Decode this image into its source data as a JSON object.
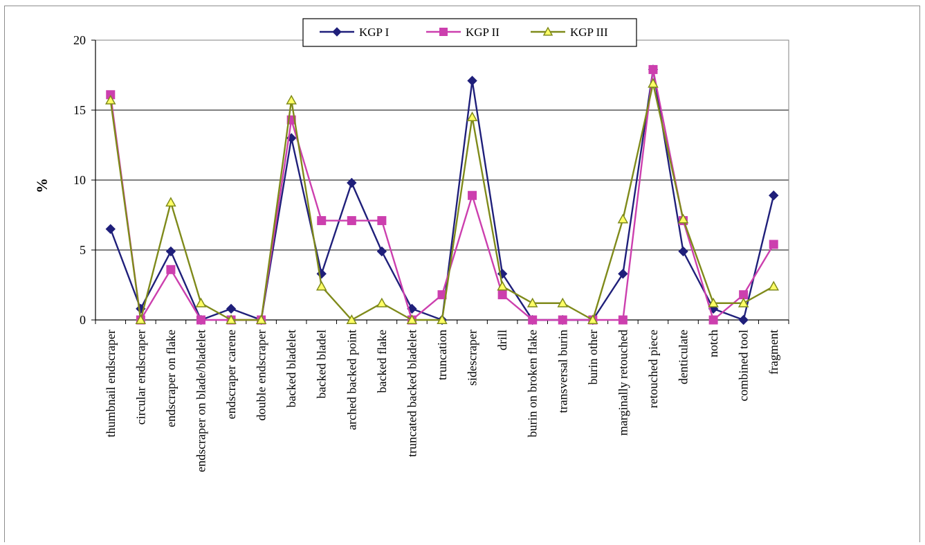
{
  "chart_data": {
    "type": "line",
    "title": "",
    "xlabel": "",
    "ylabel": "%",
    "ylim": [
      0,
      20
    ],
    "yticks": [
      0,
      5,
      10,
      15,
      20
    ],
    "grid": true,
    "legend_position": "top-center",
    "categories": [
      "thumbnail endscraper",
      "circular endscraper",
      "endscraper on flake",
      "endscraper on blade/bladelet",
      "endscraper carene",
      "double endscraper",
      "backed bladelet",
      "backed bladel",
      "arched backed point",
      "backed flake",
      "truncated backed bladelet",
      "truncation",
      "sidescraper",
      "drill",
      "burin on broken flake",
      "transversal burin",
      "burin other",
      "marginally retouched",
      "retouched piece",
      "denticulate",
      "notch",
      "combined tool",
      "fragment"
    ],
    "series": [
      {
        "name": "KGP I",
        "color": "#1f1f7a",
        "marker": "diamond",
        "values": [
          6.5,
          0.8,
          4.9,
          0,
          0.8,
          0,
          13.0,
          3.3,
          9.8,
          4.9,
          0.8,
          0,
          17.1,
          3.3,
          0,
          0,
          0,
          3.3,
          17.9,
          4.9,
          0.8,
          0,
          8.9
        ]
      },
      {
        "name": "KGP II",
        "color": "#cc3fae",
        "marker": "square",
        "values": [
          16.1,
          0,
          3.6,
          0,
          0,
          0,
          14.3,
          7.1,
          7.1,
          7.1,
          0,
          1.8,
          8.9,
          1.8,
          0,
          0,
          0,
          0,
          17.9,
          7.1,
          0,
          1.8,
          5.4
        ]
      },
      {
        "name": "KGP III",
        "color": "#7f8a1a",
        "marker_fill": "#ffff66",
        "marker": "triangle",
        "values": [
          15.7,
          0,
          8.4,
          1.2,
          0,
          0,
          15.7,
          2.4,
          0,
          1.2,
          0,
          0,
          14.5,
          2.4,
          1.2,
          1.2,
          0,
          7.2,
          16.9,
          7.2,
          1.2,
          1.2,
          2.4
        ]
      }
    ]
  }
}
